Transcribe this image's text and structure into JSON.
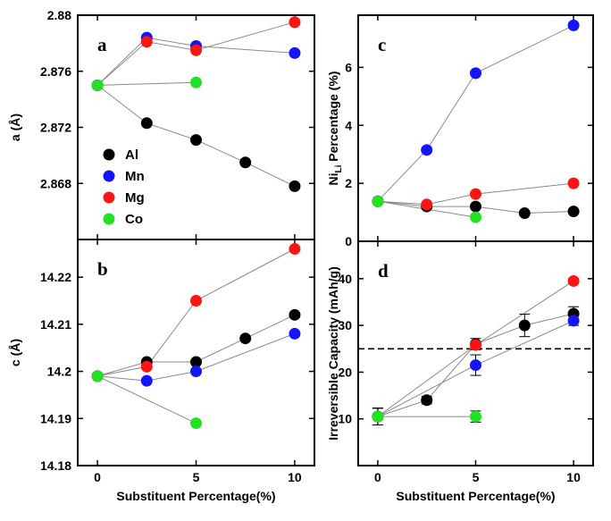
{
  "colors": {
    "Al": "#000000",
    "Mn": "#1414ff",
    "Mg": "#ff1414",
    "Co": "#22e022"
  },
  "legend": [
    {
      "key": "Al",
      "label": "Al"
    },
    {
      "key": "Mn",
      "label": "Mn"
    },
    {
      "key": "Mg",
      "label": "Mg"
    },
    {
      "key": "Co",
      "label": "Co"
    }
  ],
  "chart_data": [
    {
      "id": "a",
      "panel_label": "a",
      "type": "scatter",
      "xlabel": "",
      "ylabel": "a (Å)",
      "xlim": [
        -1,
        11
      ],
      "ylim": [
        2.864,
        2.88
      ],
      "xticks": [
        0,
        5,
        10
      ],
      "xtick_labels": [],
      "yticks": [
        2.868,
        2.872,
        2.876,
        2.88
      ],
      "ytick_labels": [
        "2.868",
        "2.872",
        "2.876",
        "2.88"
      ],
      "series": [
        {
          "name": "Al",
          "x": [
            0,
            2.5,
            5,
            7.5,
            10
          ],
          "y": [
            2.875,
            2.8723,
            2.8711,
            2.8695,
            2.8678
          ]
        },
        {
          "name": "Mn",
          "x": [
            0,
            2.5,
            5,
            10
          ],
          "y": [
            2.875,
            2.8784,
            2.8778,
            2.8773
          ]
        },
        {
          "name": "Mg",
          "x": [
            0,
            2.5,
            5,
            10
          ],
          "y": [
            2.875,
            2.8781,
            2.8775,
            2.8795
          ]
        },
        {
          "name": "Co",
          "x": [
            0,
            5
          ],
          "y": [
            2.875,
            2.8752
          ]
        }
      ]
    },
    {
      "id": "b",
      "panel_label": "b",
      "type": "scatter",
      "xlabel": "Substituent Percentage(%)",
      "ylabel": "c (Å)",
      "xlim": [
        -1,
        11
      ],
      "ylim": [
        14.18,
        14.228
      ],
      "xticks": [
        0,
        5,
        10
      ],
      "xtick_labels": [
        "0",
        "5",
        "10"
      ],
      "yticks": [
        14.18,
        14.19,
        14.2,
        14.21,
        14.22
      ],
      "ytick_labels": [
        "14.18",
        "14.19",
        "14.2",
        "14.21",
        "14.22"
      ],
      "series": [
        {
          "name": "Al",
          "x": [
            0,
            2.5,
            5,
            7.5,
            10
          ],
          "y": [
            14.199,
            14.202,
            14.202,
            14.207,
            14.212
          ]
        },
        {
          "name": "Mn",
          "x": [
            0,
            2.5,
            5,
            10
          ],
          "y": [
            14.199,
            14.198,
            14.2,
            14.208
          ]
        },
        {
          "name": "Mg",
          "x": [
            0,
            2.5,
            5,
            10
          ],
          "y": [
            14.199,
            14.201,
            14.215,
            14.226
          ]
        },
        {
          "name": "Co",
          "x": [
            0,
            5
          ],
          "y": [
            14.199,
            14.189
          ]
        }
      ]
    },
    {
      "id": "c",
      "panel_label": "c",
      "type": "scatter",
      "xlabel": "",
      "ylabel_main": "Ni",
      "ylabel_sub": "Li",
      "ylabel_rest": " Percentage (%)",
      "xlim": [
        -1,
        11
      ],
      "ylim": [
        0,
        7.8
      ],
      "xticks": [
        0,
        5,
        10
      ],
      "xtick_labels": [],
      "yticks": [
        0,
        2,
        4,
        6
      ],
      "ytick_labels": [
        "0",
        "2",
        "4",
        "6"
      ],
      "series": [
        {
          "name": "Al",
          "x": [
            0,
            2.5,
            5,
            7.5,
            10
          ],
          "y": [
            1.38,
            1.2,
            1.2,
            0.97,
            1.03
          ]
        },
        {
          "name": "Mn",
          "x": [
            0,
            2.5,
            5,
            10
          ],
          "y": [
            1.38,
            3.15,
            5.8,
            7.45
          ]
        },
        {
          "name": "Mg",
          "x": [
            0,
            2.5,
            5,
            10
          ],
          "y": [
            1.38,
            1.27,
            1.63,
            2.0
          ]
        },
        {
          "name": "Co",
          "x": [
            0,
            5
          ],
          "y": [
            1.38,
            0.83
          ]
        }
      ]
    },
    {
      "id": "d",
      "panel_label": "d",
      "type": "scatter",
      "xlabel": "Substituent Percentage(%)",
      "ylabel": "Irreversible Capacity (mAh/g)",
      "xlim": [
        -1,
        11
      ],
      "ylim": [
        0,
        48
      ],
      "xticks": [
        0,
        5,
        10
      ],
      "xtick_labels": [
        "0",
        "5",
        "10"
      ],
      "yticks": [
        10,
        20,
        30,
        40
      ],
      "ytick_labels": [
        "10",
        "20",
        "30",
        "40"
      ],
      "reference_line": 25,
      "series": [
        {
          "name": "Al",
          "x": [
            0,
            2.5,
            5,
            7.5,
            10
          ],
          "y": [
            10.5,
            14,
            26,
            30,
            32.5
          ],
          "err": [
            1.8,
            0.8,
            1.2,
            2.4,
            1.5
          ]
        },
        {
          "name": "Mn",
          "x": [
            0,
            5,
            10
          ],
          "y": [
            10.5,
            21.5,
            31
          ],
          "err": [
            1.8,
            2.2,
            1.0
          ]
        },
        {
          "name": "Mg",
          "x": [
            0,
            5,
            10
          ],
          "y": [
            10.5,
            25.8,
            39.5
          ],
          "err": [
            1.8,
            0.6,
            0.5
          ]
        },
        {
          "name": "Co",
          "x": [
            0,
            5
          ],
          "y": [
            10.5,
            10.5
          ],
          "err": [
            1.8,
            1.2
          ]
        }
      ]
    }
  ]
}
